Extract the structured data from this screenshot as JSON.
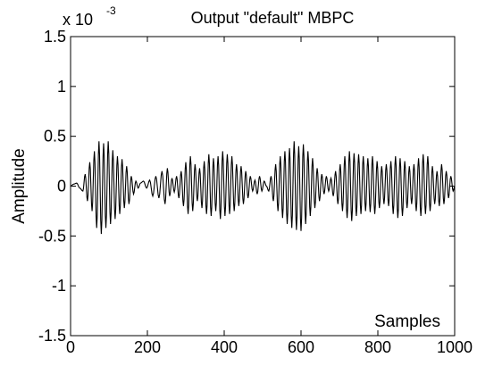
{
  "chart_data": {
    "type": "line",
    "title": "Output \"default\" MBPC",
    "xlabel": "",
    "ylabel": "Amplitude",
    "annotation": "Samples",
    "y_scale_factor_base": "x 10",
    "y_scale_factor_exp": "-3",
    "xlim": [
      0,
      1000
    ],
    "ylim": [
      -1.5,
      1.5
    ],
    "x_ticks": [
      0,
      200,
      400,
      600,
      800,
      1000
    ],
    "x_tick_labels": [
      "0",
      "200",
      "400",
      "600",
      "800",
      "1000"
    ],
    "y_ticks": [
      -1.5,
      -1,
      -0.5,
      0,
      0.5,
      1,
      1.5
    ],
    "y_tick_labels": [
      "-1.5",
      "-1",
      "-0.5",
      "0",
      "0.5",
      "1",
      "1.5"
    ],
    "grid": false,
    "line_color": "#000000",
    "series": [
      {
        "x": [
          0,
          8,
          16,
          24,
          32,
          38,
          44,
          50,
          56,
          62,
          68,
          74,
          80,
          86,
          92,
          98,
          104,
          110,
          116,
          122,
          128,
          134,
          140,
          146,
          152,
          158,
          164,
          170,
          176,
          182,
          190,
          198,
          206,
          214,
          222,
          230,
          238,
          246,
          252,
          258,
          264,
          270,
          276,
          282,
          288,
          294,
          300,
          306,
          312,
          318,
          324,
          330,
          336,
          342,
          348,
          354,
          360,
          366,
          372,
          378,
          384,
          390,
          396,
          402,
          408,
          414,
          420,
          426,
          432,
          438,
          444,
          450,
          456,
          462,
          468,
          474,
          480,
          486,
          492,
          498,
          504,
          510,
          516,
          522,
          528,
          534,
          540,
          546,
          552,
          558,
          564,
          570,
          576,
          582,
          588,
          594,
          600,
          606,
          612,
          618,
          624,
          630,
          636,
          642,
          648,
          654,
          660,
          666,
          672,
          678,
          684,
          690,
          696,
          702,
          708,
          714,
          720,
          726,
          732,
          738,
          744,
          750,
          756,
          762,
          768,
          774,
          780,
          786,
          792,
          798,
          804,
          810,
          816,
          822,
          828,
          834,
          840,
          846,
          852,
          858,
          864,
          870,
          876,
          882,
          888,
          894,
          900,
          906,
          912,
          918,
          924,
          930,
          936,
          942,
          948,
          954,
          960,
          966,
          972,
          978,
          984,
          990,
          996,
          1000
        ],
        "y": [
          0,
          0.02,
          0.03,
          -0.02,
          -0.05,
          0.12,
          -0.15,
          0.24,
          -0.25,
          0.35,
          -0.42,
          0.45,
          -0.48,
          0.43,
          -0.42,
          0.45,
          -0.38,
          0.36,
          -0.33,
          0.3,
          -0.28,
          0.27,
          -0.22,
          0.2,
          -0.18,
          0.1,
          -0.08,
          0.05,
          -0.02,
          0.03,
          0.05,
          -0.02,
          0.06,
          -0.1,
          0.1,
          -0.12,
          0.15,
          -0.18,
          0.18,
          -0.1,
          0.08,
          -0.06,
          0.1,
          -0.12,
          0.15,
          -0.2,
          0.24,
          -0.28,
          0.3,
          -0.25,
          0.22,
          -0.15,
          0.18,
          -0.22,
          0.25,
          -0.28,
          0.32,
          -0.3,
          0.28,
          -0.25,
          0.3,
          -0.33,
          0.35,
          -0.3,
          0.32,
          -0.28,
          0.3,
          -0.25,
          0.22,
          -0.2,
          0.2,
          -0.18,
          0.15,
          -0.12,
          0.1,
          -0.05,
          0.06,
          -0.08,
          0.1,
          -0.05,
          0.05,
          0,
          -0.05,
          0.1,
          -0.15,
          0.22,
          -0.25,
          0.3,
          -0.32,
          0.35,
          -0.38,
          0.38,
          -0.42,
          0.45,
          -0.44,
          0.4,
          -0.45,
          0.42,
          -0.38,
          0.35,
          -0.3,
          0.28,
          -0.22,
          0.18,
          -0.15,
          0.12,
          -0.08,
          0.1,
          -0.05,
          0.08,
          -0.1,
          0.15,
          -0.18,
          0.22,
          -0.25,
          0.3,
          -0.32,
          0.35,
          -0.35,
          0.33,
          -0.3,
          0.32,
          -0.28,
          0.3,
          -0.25,
          0.28,
          -0.26,
          0.3,
          -0.28,
          0.25,
          -0.22,
          0.2,
          -0.18,
          0.22,
          -0.2,
          0.25,
          -0.28,
          0.3,
          -0.32,
          0.28,
          -0.3,
          0.25,
          -0.22,
          0.2,
          -0.18,
          0.22,
          -0.25,
          0.28,
          -0.3,
          0.32,
          -0.28,
          0.3,
          -0.25,
          0.2,
          -0.18,
          0.15,
          -0.2,
          0.22,
          -0.18,
          0.15,
          -0.12,
          0.1,
          -0.05,
          0
        ]
      }
    ]
  }
}
